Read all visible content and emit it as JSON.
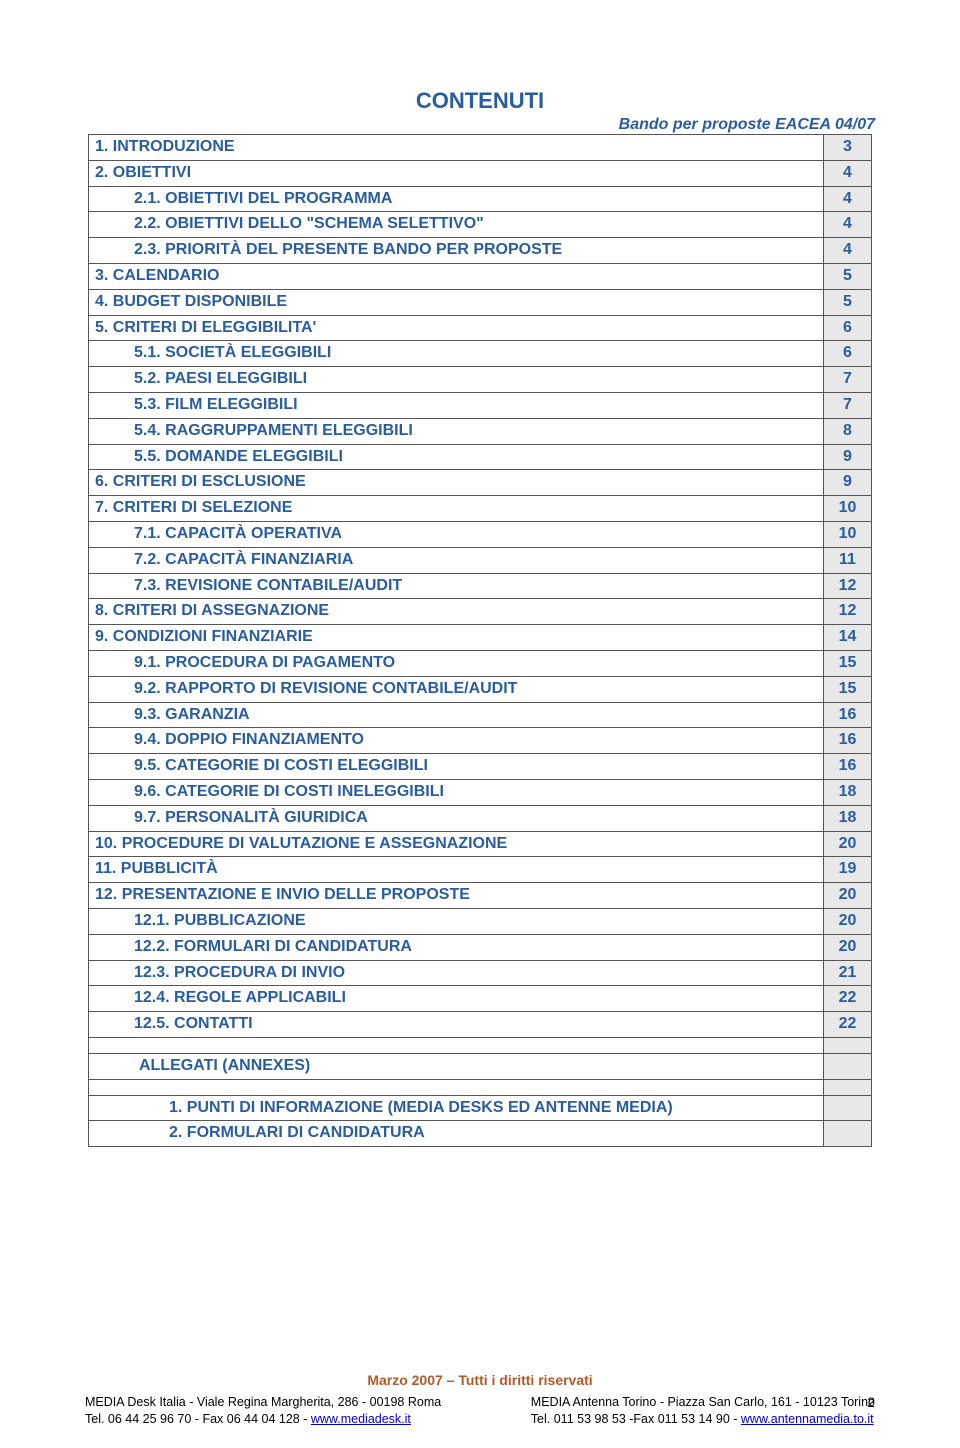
{
  "colors": {
    "link_blue": "#2a5d9e",
    "footer_brown": "#b05a2a",
    "page_cell_bg": "#e8e8e8",
    "border": "#555555",
    "hyperlink": "#0000cc",
    "background": "#ffffff"
  },
  "header": {
    "right": "Bando per proposte EACEA 04/07"
  },
  "title": "CONTENUTI",
  "toc": [
    {
      "label": "1. INTRODUZIONE",
      "page": "3",
      "indent": 0
    },
    {
      "label": "2. OBIETTIVI",
      "page": "4",
      "indent": 0
    },
    {
      "label": "2.1. OBIETTIVI DEL PROGRAMMA",
      "page": "4",
      "indent": 1
    },
    {
      "label": "2.2. OBIETTIVI DELLO \"SCHEMA SELETTIVO\"",
      "page": "4",
      "indent": 1
    },
    {
      "label": "2.3. PRIORITÀ DEL PRESENTE BANDO PER PROPOSTE",
      "page": "4",
      "indent": 1
    },
    {
      "label": "3. CALENDARIO",
      "page": "5",
      "indent": 0
    },
    {
      "label": "4. BUDGET DISPONIBILE",
      "page": "5",
      "indent": 0
    },
    {
      "label": "5. CRITERI DI ELEGGIBILITA'",
      "page": "6",
      "indent": 0
    },
    {
      "label": "5.1. SOCIETÀ ELEGGIBILI",
      "page": "6",
      "indent": 1
    },
    {
      "label": "5.2. PAESI ELEGGIBILI",
      "page": "7",
      "indent": 1
    },
    {
      "label": "5.3. FILM ELEGGIBILI",
      "page": "7",
      "indent": 1
    },
    {
      "label": "5.4. RAGGRUPPAMENTI ELEGGIBILI",
      "page": "8",
      "indent": 1
    },
    {
      "label": "5.5. DOMANDE ELEGGIBILI",
      "page": "9",
      "indent": 1
    },
    {
      "label": "6. CRITERI DI ESCLUSIONE",
      "page": "9",
      "indent": 0
    },
    {
      "label": "7. CRITERI DI SELEZIONE",
      "page": "10",
      "indent": 0
    },
    {
      "label": "7.1. CAPACITÀ OPERATIVA",
      "page": "10",
      "indent": 1
    },
    {
      "label": "7.2. CAPACITÀ FINANZIARIA",
      "page": "11",
      "indent": 1
    },
    {
      "label": "7.3. REVISIONE CONTABILE/AUDIT",
      "page": "12",
      "indent": 1
    },
    {
      "label": "8. CRITERI DI ASSEGNAZIONE",
      "page": "12",
      "indent": 0
    },
    {
      "label": "9. CONDIZIONI FINANZIARIE",
      "page": "14",
      "indent": 0
    },
    {
      "label": "9.1. PROCEDURA DI PAGAMENTO",
      "page": "15",
      "indent": 1
    },
    {
      "label": "9.2. RAPPORTO DI REVISIONE CONTABILE/AUDIT",
      "page": "15",
      "indent": 1
    },
    {
      "label": "9.3. GARANZIA",
      "page": "16",
      "indent": 1
    },
    {
      "label": "9.4. DOPPIO FINANZIAMENTO",
      "page": "16",
      "indent": 1
    },
    {
      "label": "9.5. CATEGORIE DI COSTI ELEGGIBILI",
      "page": "16",
      "indent": 1
    },
    {
      "label": "9.6. CATEGORIE DI COSTI INELEGGIBILI",
      "page": "18",
      "indent": 1
    },
    {
      "label": "9.7. PERSONALITÀ GIURIDICA",
      "page": "18",
      "indent": 1
    },
    {
      "label": "10. PROCEDURE DI VALUTAZIONE E ASSEGNAZIONE",
      "page": "20",
      "indent": 0
    },
    {
      "label": "11. PUBBLICITÀ",
      "page": "19",
      "indent": 0
    },
    {
      "label": "12. PRESENTAZIONE E INVIO DELLE PROPOSTE",
      "page": "20",
      "indent": 0
    },
    {
      "label": "12.1. PUBBLICAZIONE",
      "page": "20",
      "indent": 1
    },
    {
      "label": "12.2. FORMULARI DI CANDIDATURA",
      "page": "20",
      "indent": 1
    },
    {
      "label": "12.3. PROCEDURA DI INVIO",
      "page": "21",
      "indent": 1
    },
    {
      "label": "12.4. REGOLE APPLICABILI",
      "page": "22",
      "indent": 1
    },
    {
      "label": "12.5. CONTATTI",
      "page": "22",
      "indent": 1
    }
  ],
  "annex": {
    "heading": "ALLEGATI (ANNEXES)",
    "items": [
      "1.   PUNTI DI INFORMAZIONE (MEDIA DESKS ED ANTENNE MEDIA)",
      "2.   FORMULARI DI CANDIDATURA"
    ]
  },
  "footer": {
    "center": "Marzo 2007 – Tutti i diritti riservati",
    "left": {
      "line1": "MEDIA Desk Italia - Viale Regina Margherita, 286 - 00198 Roma",
      "line2_pre": "Tel. 06 44 25 96 70 - Fax 06 44 04 128 - ",
      "link": "www.mediadesk.it"
    },
    "right": {
      "line1": "MEDIA Antenna Torino - Piazza San Carlo, 161 - 10123 Torino",
      "line2_pre": "Tel. 011 53 98 53 -Fax 011 53 14 90 - ",
      "link": "www.antennamedia.to.it"
    },
    "page_number": "2"
  }
}
